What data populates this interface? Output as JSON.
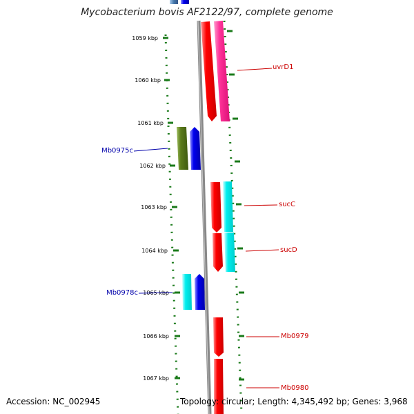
{
  "title": "Mycobacterium bovis AF2122/97, complete genome",
  "footer": {
    "accession": "Accession: NC_002945",
    "summary": "Topology: circular; Length: 4,345,492 bp; Genes: 3,968"
  },
  "kbp_ticks": [
    "1059 kbp",
    "1060 kbp",
    "1061 kbp",
    "1062 kbp",
    "1063 kbp",
    "1064 kbp",
    "1065 kbp",
    "1066 kbp",
    "1067 kbp"
  ],
  "gene_labels": [
    {
      "text": "uvrD1",
      "color": "#cc0000"
    },
    {
      "text": "Mb0975c",
      "color": "#0000aa"
    },
    {
      "text": "sucC",
      "color": "#cc0000"
    },
    {
      "text": "sucD",
      "color": "#cc0000"
    },
    {
      "text": "Mb0978c",
      "color": "#0000aa"
    },
    {
      "text": "Mb0979",
      "color": "#cc0000"
    },
    {
      "text": "Mb0980",
      "color": "#cc0000"
    }
  ],
  "colors": {
    "backbone": "#888888",
    "tick": "#1a7a1a",
    "red": "#ff0000",
    "magenta": "#ff3399",
    "cyan": "#00eeee",
    "blue": "#0000ee",
    "olive": "#5a7a1a",
    "steelblue": "#4477aa"
  }
}
